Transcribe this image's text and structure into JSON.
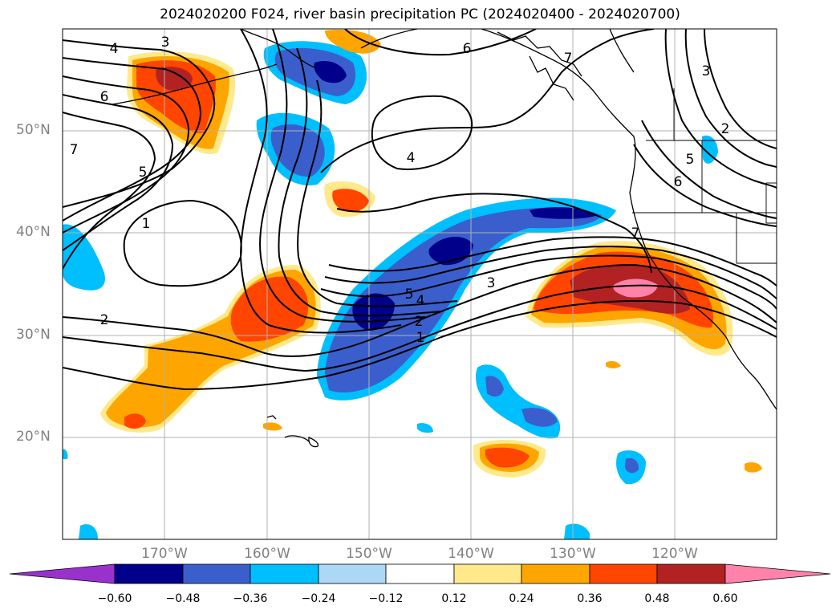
{
  "title": "2024020200 F024, river basin precipitation PC (2024020400 - 2024020700)",
  "map": {
    "projection": "cylindrical",
    "lon_range": [
      -180,
      -110
    ],
    "lat_range": [
      10,
      60
    ],
    "lat_labels": [
      "50°N",
      "40°N",
      "30°N",
      "20°N"
    ],
    "lon_labels": [
      "170°W",
      "160°W",
      "150°W",
      "140°W",
      "130°W",
      "120°W"
    ],
    "gridlines": true,
    "contour_labels": [
      "4",
      "3",
      "6",
      "6",
      "7",
      "5",
      "1",
      "2",
      "4",
      "5",
      "4",
      "2",
      "1",
      "3",
      "3",
      "2",
      "5",
      "6",
      "7",
      "7"
    ]
  },
  "colorbar": {
    "ticks": [
      "−0.60",
      "−0.48",
      "−0.36",
      "−0.24",
      "−0.12",
      "0.12",
      "0.24",
      "0.36",
      "0.48",
      "0.60"
    ],
    "colors": {
      "under": "#9932cc",
      "neg_060": "#00008b",
      "neg_048": "#3a5fcd",
      "neg_036": "#00bfff",
      "neg_024": "#add8f5",
      "neutral": "#ffffff",
      "pos_012": "#ffe98a",
      "pos_024": "#ffa500",
      "pos_036": "#ff4500",
      "pos_048": "#b22222",
      "over": "#ff82ab"
    }
  }
}
